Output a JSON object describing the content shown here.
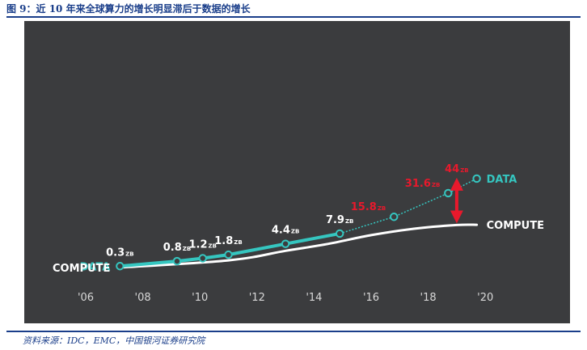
{
  "header": {
    "title": "图 9：近 10 年来全球算力的增长明显滞后于数据的增长"
  },
  "footer": {
    "source": "资料来源：IDC，EMC，中国银河证券研究院"
  },
  "colors": {
    "panel": "#3b3c3e",
    "data": "#35c6c0",
    "compute": "#ffffff",
    "highlight": "#e8192c",
    "label": "#ffffff",
    "axis": "#d8d8d8"
  },
  "chart_data": {
    "type": "line",
    "title": "",
    "xlabel": "",
    "ylabel": "",
    "x_ticks": [
      "'06",
      "'08",
      "'10",
      "'12",
      "'14",
      "'16",
      "'18",
      "'20"
    ],
    "xlim": [
      2006,
      2020
    ],
    "grid": false,
    "legend": "inline labels at line ends",
    "series": [
      {
        "name": "DATA",
        "color": "#35c6c0",
        "points": [
          {
            "x": 2007.2,
            "y": 0.3,
            "label": "0.3",
            "unit": "ZB",
            "label_color": "white"
          },
          {
            "x": 2009.2,
            "y": 0.8,
            "label": "0.8",
            "unit": "ZB",
            "label_color": "white"
          },
          {
            "x": 2010.1,
            "y": 1.2,
            "label": "1.2",
            "unit": "ZB",
            "label_color": "white"
          },
          {
            "x": 2011.0,
            "y": 1.8,
            "label": "1.8",
            "unit": "ZB",
            "label_color": "white"
          },
          {
            "x": 2013.0,
            "y": 4.4,
            "label": "4.4",
            "unit": "ZB",
            "label_color": "white"
          },
          {
            "x": 2014.9,
            "y": 7.9,
            "label": "7.9",
            "unit": "ZB",
            "label_color": "white"
          },
          {
            "x": 2016.8,
            "y": 15.8,
            "label": "15.8",
            "unit": "ZB",
            "label_color": "red"
          },
          {
            "x": 2018.7,
            "y": 31.6,
            "label": "31.6",
            "unit": "ZB",
            "label_color": "red"
          },
          {
            "x": 2019.7,
            "y": 44,
            "label": "44",
            "unit": "ZB",
            "label_color": "red"
          }
        ]
      },
      {
        "name": "COMPUTE",
        "color": "#ffffff",
        "points": [
          {
            "x": 2007.2,
            "y": 0.2
          },
          {
            "x": 2011.0,
            "y": 0.9
          },
          {
            "x": 2013.0,
            "y": 2.6
          },
          {
            "x": 2014.5,
            "y": 4.4
          },
          {
            "x": 2016.0,
            "y": 7.3
          },
          {
            "x": 2017.5,
            "y": 9.9
          },
          {
            "x": 2019.0,
            "y": 11.6
          },
          {
            "x": 2019.7,
            "y": 11.7
          }
        ]
      }
    ],
    "annotations": [
      {
        "type": "double-arrow",
        "color": "red",
        "x": 2019.0,
        "from_y": 11.6,
        "to_y": 39
      }
    ]
  }
}
